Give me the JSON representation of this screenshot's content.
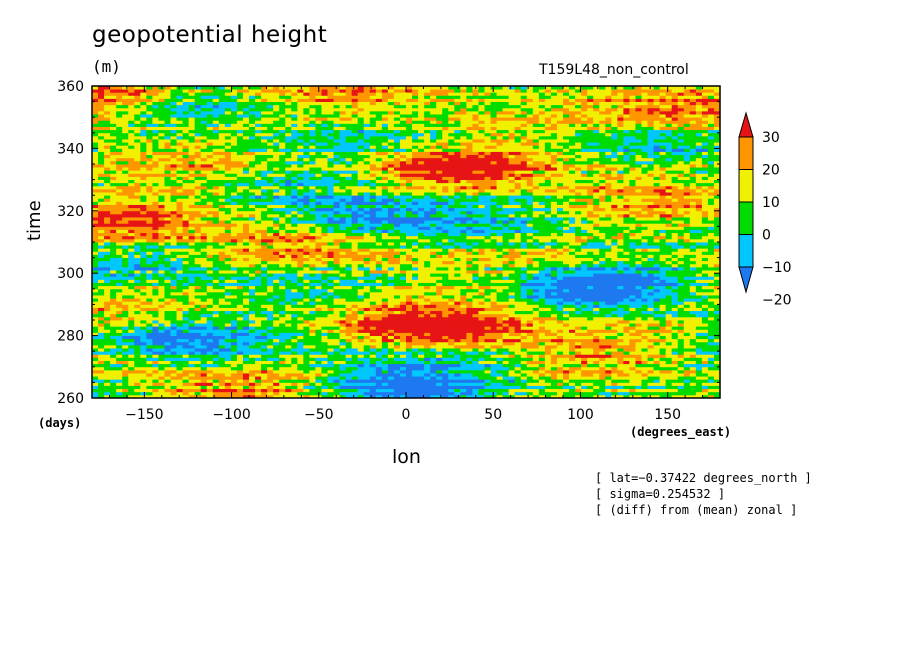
{
  "chart_data": {
    "type": "heatmap",
    "title": "geopotential height",
    "units": "(m)",
    "run_label": "T159L48_non_control",
    "xlabel": "lon",
    "x_unit": "(degrees_east)",
    "ylabel": "time",
    "y_unit": "(days)",
    "xlim": [
      -180,
      180
    ],
    "ylim": [
      260,
      360
    ],
    "x_ticks": [
      -150,
      -100,
      -50,
      0,
      50,
      100,
      150
    ],
    "x_tick_labels": [
      "−150",
      "−100",
      "−50",
      "0",
      "50",
      "100",
      "150"
    ],
    "y_ticks": [
      260,
      280,
      300,
      320,
      340,
      360
    ],
    "y_tick_labels": [
      "260",
      "280",
      "300",
      "320",
      "340",
      "360"
    ],
    "colorbar": {
      "levels": [
        -30,
        -20,
        -10,
        0,
        10,
        20,
        30,
        40
      ],
      "labels": [
        "−20",
        "−10",
        "0",
        "10",
        "20",
        "30"
      ],
      "label_values": [
        -20,
        -10,
        0,
        10,
        20,
        30
      ],
      "colors": [
        "#1e78f0",
        "#00c8ff",
        "#00dc00",
        "#f0f000",
        "#ff9600",
        "#e61414"
      ],
      "extend": "both"
    },
    "features": [
      {
        "lon": 30,
        "time": 333,
        "sign": "positive"
      },
      {
        "lon": -160,
        "time": 315,
        "sign": "positive"
      },
      {
        "lon": 20,
        "time": 282,
        "sign": "positive"
      },
      {
        "lon": -30,
        "time": 318,
        "sign": "negative"
      },
      {
        "lon": 110,
        "time": 296,
        "sign": "negative"
      },
      {
        "lon": 0,
        "time": 263,
        "sign": "negative"
      },
      {
        "lon": -140,
        "time": 280,
        "sign": "negative"
      },
      {
        "lon": 160,
        "time": 353,
        "sign": "positive"
      },
      {
        "lon": -170,
        "time": 357,
        "sign": "positive"
      }
    ]
  },
  "annotations": [
    "[ lat=−0.37422 degrees_north ]",
    "[ sigma=0.254532 ]",
    "[ (diff) from (mean) zonal ]"
  ]
}
